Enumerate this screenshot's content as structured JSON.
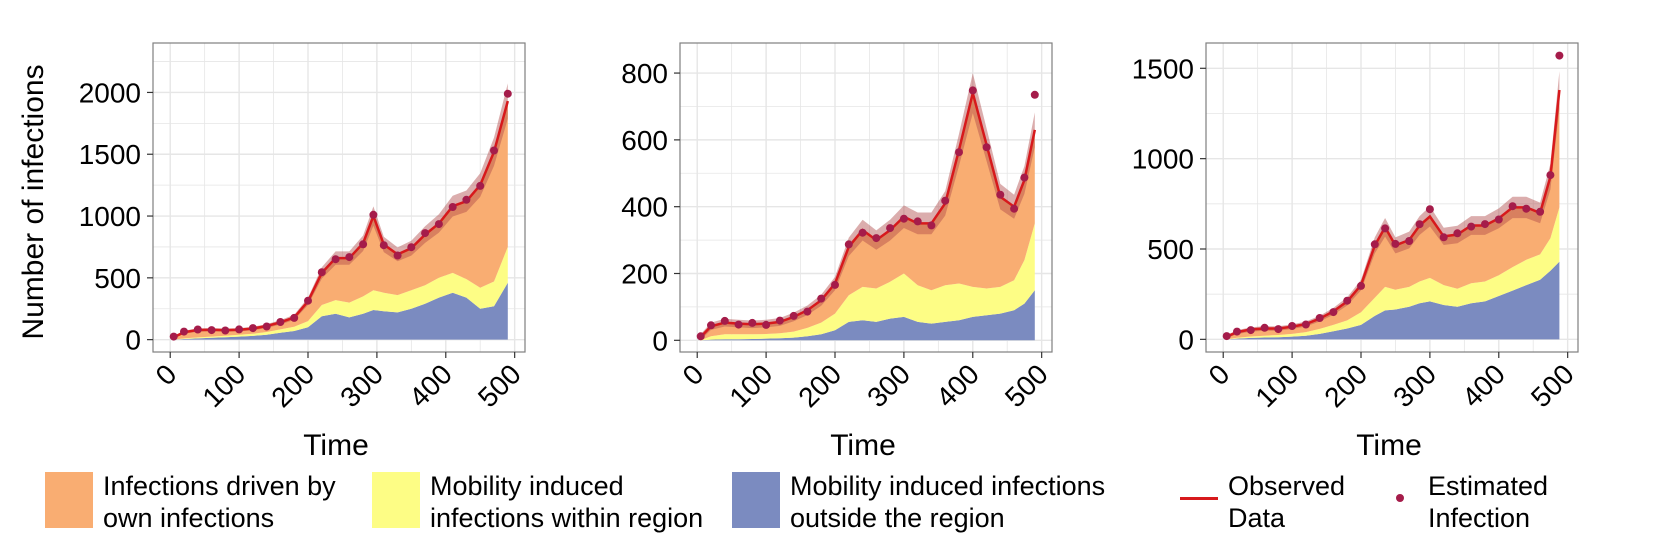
{
  "colors": {
    "own": "#f9ad72",
    "within": "#fdfd85",
    "outside": "#7b8bc0",
    "observed_line": "#d7191c",
    "band": "#b04a4a",
    "estimated_dot": "#a51c4a",
    "grid": "#e6e6e6",
    "frame": "#7f7f7f"
  },
  "legend": [
    {
      "key": "own",
      "line1": "Infections driven by",
      "line2": "own infections"
    },
    {
      "key": "within",
      "line1": "Mobility induced",
      "line2": "infections within region"
    },
    {
      "key": "outside",
      "line1": "Mobility induced infections",
      "line2": "outside the region"
    },
    {
      "key": "observed_line",
      "line1": "Observed",
      "line2": "Data"
    },
    {
      "key": "estimated_dot",
      "line1": "Estimated",
      "line2": "Infection"
    }
  ],
  "chart_data": [
    {
      "type": "area",
      "stacked": true,
      "xlabel": "Time",
      "ylabel": "Number of infections",
      "xlim": [
        -25,
        515
      ],
      "ylim": [
        -100,
        2400
      ],
      "xticks": [
        0,
        100,
        200,
        300,
        400,
        500
      ],
      "yticks": [
        0,
        500,
        1000,
        1500,
        2000
      ],
      "x": [
        5,
        20,
        40,
        60,
        80,
        100,
        120,
        140,
        160,
        180,
        200,
        220,
        240,
        260,
        280,
        295,
        310,
        330,
        350,
        370,
        390,
        410,
        430,
        450,
        470,
        490
      ],
      "series": [
        {
          "name": "Mobility induced infections outside the region",
          "values": [
            0,
            5,
            10,
            15,
            20,
            25,
            30,
            40,
            55,
            70,
            100,
            190,
            210,
            180,
            210,
            240,
            230,
            220,
            250,
            290,
            340,
            380,
            340,
            250,
            270,
            460
          ]
        },
        {
          "name": "Mobility induced infections within region",
          "values": [
            0,
            5,
            8,
            10,
            12,
            15,
            18,
            22,
            28,
            35,
            50,
            90,
            110,
            120,
            140,
            160,
            150,
            140,
            150,
            150,
            160,
            160,
            150,
            170,
            200,
            290
          ]
        },
        {
          "name": "Infections driven by own infections",
          "values": [
            20,
            50,
            60,
            55,
            45,
            40,
            42,
            48,
            57,
            75,
            160,
            260,
            340,
            360,
            430,
            600,
            390,
            330,
            340,
            410,
            440,
            540,
            630,
            830,
            1050,
            1180
          ]
        }
      ],
      "observed": [
        20,
        60,
        78,
        80,
        77,
        80,
        90,
        110,
        140,
        180,
        310,
        540,
        660,
        660,
        780,
        1000,
        770,
        690,
        740,
        850,
        940,
        1080,
        1120,
        1250,
        1520,
        1930
      ],
      "estimated": [
        25,
        65,
        82,
        77,
        74,
        83,
        93,
        106,
        143,
        176,
        315,
        546,
        651,
        668,
        771,
        1010,
        764,
        681,
        748,
        862,
        935,
        1073,
        1131,
        1244,
        1530,
        1990
      ]
    },
    {
      "type": "area",
      "stacked": true,
      "xlabel": "Time",
      "ylabel": "",
      "xlim": [
        -25,
        515
      ],
      "ylim": [
        -35,
        890
      ],
      "xticks": [
        0,
        100,
        200,
        300,
        400,
        500
      ],
      "yticks": [
        0,
        200,
        400,
        600,
        800
      ],
      "x": [
        5,
        20,
        40,
        60,
        80,
        100,
        120,
        140,
        160,
        180,
        200,
        220,
        240,
        260,
        280,
        300,
        320,
        340,
        360,
        380,
        400,
        420,
        440,
        460,
        475,
        490
      ],
      "series": [
        {
          "name": "Mobility induced infections outside the region",
          "values": [
            0,
            2,
            3,
            3,
            4,
            5,
            6,
            8,
            12,
            18,
            30,
            55,
            60,
            55,
            65,
            70,
            55,
            50,
            55,
            60,
            70,
            75,
            80,
            90,
            110,
            150
          ]
        },
        {
          "name": "Mobility induced infections within region",
          "values": [
            0,
            10,
            15,
            15,
            14,
            14,
            15,
            18,
            25,
            35,
            50,
            80,
            100,
            100,
            110,
            130,
            110,
            100,
            110,
            110,
            90,
            80,
            80,
            90,
            130,
            200
          ]
        },
        {
          "name": "Infections driven by own infections",
          "values": [
            10,
            30,
            35,
            32,
            30,
            31,
            34,
            44,
            53,
            67,
            90,
            145,
            170,
            145,
            155,
            170,
            185,
            200,
            245,
            400,
            580,
            430,
            270,
            220,
            240,
            280
          ]
        }
      ],
      "observed": [
        10,
        42,
        53,
        50,
        48,
        50,
        55,
        70,
        90,
        120,
        170,
        280,
        330,
        300,
        330,
        370,
        350,
        350,
        410,
        570,
        740,
        585,
        430,
        400,
        480,
        630
      ],
      "estimated": [
        12,
        45,
        58,
        47,
        52,
        46,
        59,
        73,
        86,
        125,
        166,
        287,
        322,
        306,
        336,
        364,
        356,
        344,
        418,
        563,
        748,
        578,
        436,
        394,
        487,
        735
      ]
    },
    {
      "type": "area",
      "stacked": true,
      "xlabel": "Time",
      "ylabel": "",
      "xlim": [
        -25,
        515
      ],
      "ylim": [
        -70,
        1640
      ],
      "xticks": [
        0,
        100,
        200,
        300,
        400,
        500
      ],
      "yticks": [
        0,
        500,
        1000,
        1500
      ],
      "x": [
        5,
        20,
        40,
        60,
        80,
        100,
        120,
        140,
        160,
        180,
        200,
        220,
        235,
        250,
        270,
        285,
        300,
        320,
        340,
        360,
        380,
        400,
        420,
        440,
        460,
        475,
        488
      ],
      "series": [
        {
          "name": "Mobility induced infections outside the region",
          "values": [
            0,
            4,
            8,
            10,
            12,
            15,
            20,
            30,
            45,
            60,
            80,
            130,
            160,
            165,
            180,
            200,
            210,
            190,
            180,
            200,
            210,
            240,
            270,
            300,
            330,
            380,
            430
          ]
        },
        {
          "name": "Mobility induced infections within region",
          "values": [
            0,
            5,
            8,
            10,
            12,
            15,
            20,
            28,
            35,
            45,
            70,
            100,
            130,
            110,
            110,
            120,
            130,
            110,
            100,
            110,
            110,
            115,
            130,
            140,
            140,
            180,
            300
          ]
        },
        {
          "name": "Infections driven by own infections",
          "values": [
            15,
            31,
            39,
            40,
            36,
            40,
            45,
            57,
            75,
            105,
            150,
            290,
            330,
            245,
            260,
            310,
            340,
            270,
            300,
            320,
            310,
            315,
            330,
            290,
            230,
            340,
            650
          ]
        }
      ],
      "observed": [
        15,
        40,
        55,
        60,
        60,
        70,
        85,
        115,
        155,
        210,
        300,
        520,
        620,
        520,
        550,
        630,
        680,
        570,
        580,
        630,
        630,
        670,
        730,
        730,
        700,
        900,
        1380
      ],
      "estimated": [
        18,
        43,
        51,
        64,
        57,
        74,
        82,
        118,
        151,
        214,
        296,
        526,
        614,
        528,
        544,
        637,
        720,
        565,
        587,
        624,
        638,
        663,
        737,
        723,
        706,
        909,
        1570
      ]
    }
  ]
}
